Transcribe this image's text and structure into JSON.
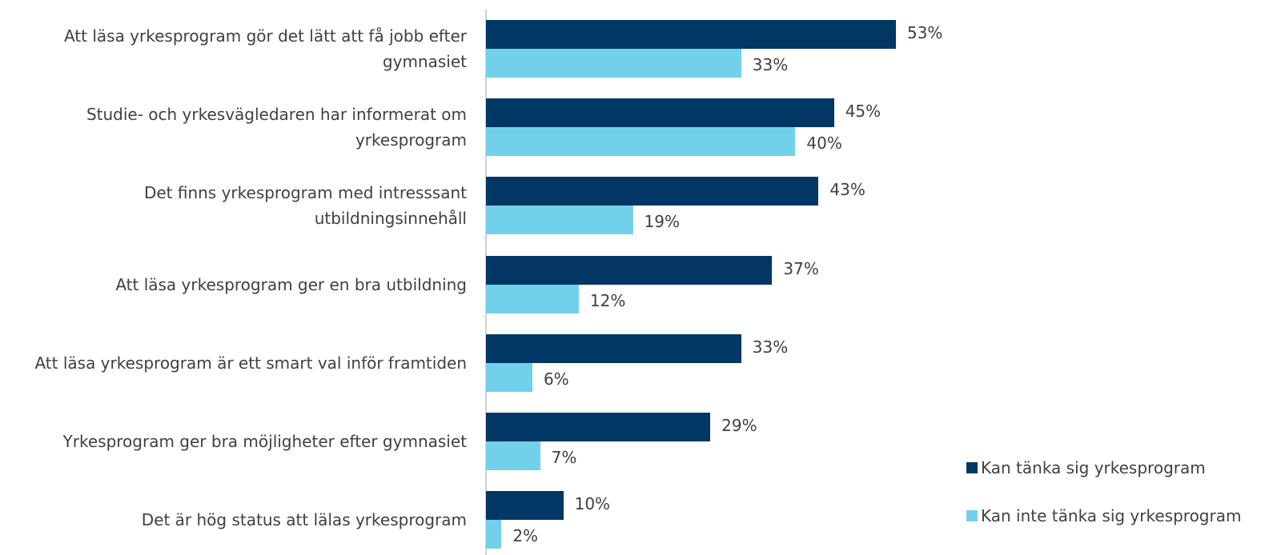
{
  "chart_data": {
    "type": "bar",
    "orientation": "horizontal",
    "categories": [
      "Att läsa yrkesprogram gör det lätt att få jobb efter gymnasiet",
      "Studie- och yrkesvägledaren har informerat om yrkesprogram",
      "Det finns yrkesprogram med intresssant utbildningsinnehåll",
      "Att läsa yrkesprogram ger en bra utbildning",
      "Att läsa yrkesprogram är ett smart val inför framtiden",
      "Yrkesprogram ger bra möjligheter efter gymnasiet",
      "Det är hög status att lälas yrkesprogram"
    ],
    "series": [
      {
        "name": "Kan tänka sig yrkesprogram",
        "color": "#003764",
        "values": [
          53,
          45,
          43,
          37,
          33,
          29,
          10
        ],
        "value_labels": [
          "53%",
          "45%",
          "43%",
          "37%",
          "33%",
          "29%",
          "10%"
        ]
      },
      {
        "name": "Kan inte tänka sig yrkesprogram",
        "color": "#72d0eb",
        "values": [
          33,
          40,
          19,
          12,
          6,
          7,
          2
        ],
        "value_labels": [
          "33%",
          "40%",
          "19%",
          "12%",
          "6%",
          "7%",
          "2%"
        ]
      }
    ],
    "legend": "bottom-right"
  }
}
